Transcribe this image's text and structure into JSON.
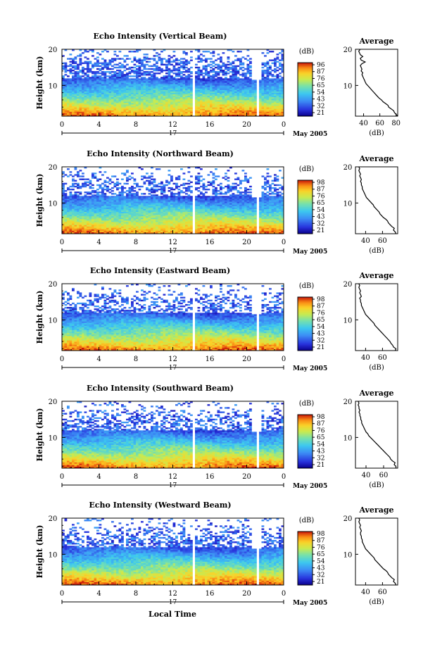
{
  "figure": {
    "shared_x_label": "Local Time",
    "date_label": "17",
    "month_label": "May 2005"
  },
  "chart_data": [
    {
      "type": "heatmap",
      "title": "Echo Intensity (Vertical Beam)",
      "ylabel": "Height (km)",
      "x_ticks": [
        "0",
        "4",
        "8",
        "12",
        "16",
        "20",
        "0"
      ],
      "y_ticks": [
        "10",
        "20"
      ],
      "xlim": [
        0,
        24
      ],
      "ylim": [
        1.5,
        20
      ],
      "colorbar": {
        "unit": "(dB)",
        "ticks": [
          "96",
          "87",
          "76",
          "65",
          "54",
          "43",
          "32",
          "21"
        ]
      },
      "data_gaps_hours": [
        [
          14.1,
          14.3
        ],
        [
          21.0,
          21.2
        ]
      ],
      "profile": {
        "title": "Average",
        "xlabel": "(dB)",
        "x_ticks": [
          "40",
          "60",
          "80"
        ],
        "y_ticks": [
          "10",
          "20"
        ],
        "xlim": [
          30,
          82
        ],
        "ylim": [
          1.5,
          20
        ],
        "heights_km": [
          1.5,
          2,
          2.5,
          3,
          3.5,
          4,
          4.5,
          5,
          5.5,
          6,
          6.5,
          7,
          7.5,
          8,
          8.5,
          9,
          9.5,
          10,
          10.5,
          11,
          11.5,
          12,
          12.5,
          13,
          13.5,
          14,
          14.5,
          15,
          15.5,
          16,
          16.5,
          17,
          17.5,
          18,
          18.5,
          19,
          19.5,
          20
        ],
        "values_db": [
          82,
          80,
          78,
          77,
          74,
          71,
          70,
          67,
          64,
          62,
          59,
          57,
          55,
          53,
          51,
          49,
          47,
          45,
          43,
          42,
          41,
          40,
          39,
          38,
          39,
          37,
          38,
          37,
          36,
          38,
          42,
          37,
          36,
          39,
          36,
          35,
          34,
          36
        ]
      }
    },
    {
      "type": "heatmap",
      "title": "Echo Intensity (Northward Beam)",
      "ylabel": "Height (km)",
      "x_ticks": [
        "0",
        "4",
        "8",
        "12",
        "16",
        "20",
        "0"
      ],
      "y_ticks": [
        "10",
        "20"
      ],
      "xlim": [
        0,
        24
      ],
      "ylim": [
        1.5,
        20
      ],
      "colorbar": {
        "unit": "(dB)",
        "ticks": [
          "98",
          "87",
          "76",
          "65",
          "54",
          "43",
          "32",
          "21"
        ]
      },
      "data_gaps_hours": [
        [
          14.1,
          14.3
        ],
        [
          21.0,
          21.2
        ]
      ],
      "profile": {
        "title": "Average",
        "xlabel": "(dB)",
        "x_ticks": [
          "40",
          "60"
        ],
        "y_ticks": [
          "10",
          "20"
        ],
        "xlim": [
          28,
          78
        ],
        "ylim": [
          1.5,
          20
        ],
        "heights_km": [
          1.5,
          2,
          2.5,
          3,
          3.5,
          4,
          4.5,
          5,
          5.5,
          6,
          6.5,
          7,
          7.5,
          8,
          8.5,
          9,
          9.5,
          10,
          10.5,
          11,
          11.5,
          12,
          12.5,
          13,
          13.5,
          14,
          14.5,
          15,
          15.5,
          16,
          16.5,
          17,
          17.5,
          18,
          18.5,
          19,
          19.5,
          20
        ],
        "values_db": [
          76,
          75,
          73,
          74,
          71,
          69,
          67,
          66,
          64,
          61,
          59,
          57,
          56,
          54,
          52,
          50,
          49,
          47,
          45,
          43,
          41,
          40,
          39,
          38,
          37,
          36,
          36,
          35,
          35,
          34,
          35,
          34,
          33,
          34,
          33,
          32,
          33,
          32
        ]
      }
    },
    {
      "type": "heatmap",
      "title": "Echo Intensity (Eastward Beam)",
      "ylabel": "Height (km)",
      "x_ticks": [
        "0",
        "4",
        "8",
        "12",
        "16",
        "20",
        "0"
      ],
      "y_ticks": [
        "10",
        "20"
      ],
      "xlim": [
        0,
        24
      ],
      "ylim": [
        1.5,
        20
      ],
      "colorbar": {
        "unit": "(dB)",
        "ticks": [
          "98",
          "87",
          "76",
          "65",
          "54",
          "43",
          "32",
          "21"
        ]
      },
      "data_gaps_hours": [
        [
          14.1,
          14.3
        ],
        [
          21.0,
          21.2
        ]
      ],
      "profile": {
        "title": "Average",
        "xlabel": "(dB)",
        "x_ticks": [
          "40",
          "60"
        ],
        "y_ticks": [
          "10",
          "20"
        ],
        "xlim": [
          28,
          78
        ],
        "ylim": [
          1.5,
          20
        ],
        "heights_km": [
          1.5,
          2,
          2.5,
          3,
          3.5,
          4,
          4.5,
          5,
          5.5,
          6,
          6.5,
          7,
          7.5,
          8,
          8.5,
          9,
          9.5,
          10,
          10.5,
          11,
          11.5,
          12,
          12.5,
          13,
          13.5,
          14,
          14.5,
          15,
          15.5,
          16,
          16.5,
          17,
          17.5,
          18,
          18.5,
          19,
          19.5,
          20
        ],
        "values_db": [
          75,
          76,
          73,
          72,
          70,
          69,
          67,
          65,
          63,
          61,
          59,
          57,
          55,
          53,
          51,
          50,
          48,
          46,
          44,
          42,
          40,
          39,
          38,
          37,
          36,
          35,
          35,
          34,
          34,
          33,
          35,
          34,
          33,
          34,
          33,
          32,
          33,
          32
        ]
      }
    },
    {
      "type": "heatmap",
      "title": "Echo Intensity (Southward Beam)",
      "ylabel": "Height (km)",
      "x_ticks": [
        "0",
        "4",
        "8",
        "12",
        "16",
        "20",
        "0"
      ],
      "y_ticks": [
        "10",
        "20"
      ],
      "xlim": [
        0,
        24
      ],
      "ylim": [
        1.5,
        20
      ],
      "colorbar": {
        "unit": "(dB)",
        "ticks": [
          "98",
          "87",
          "76",
          "65",
          "54",
          "43",
          "32",
          "21"
        ]
      },
      "data_gaps_hours": [
        [
          14.1,
          14.3
        ],
        [
          21.0,
          21.2
        ]
      ],
      "profile": {
        "title": "Average",
        "xlabel": "(dB)",
        "x_ticks": [
          "40",
          "60"
        ],
        "y_ticks": [
          "10",
          "20"
        ],
        "xlim": [
          28,
          76
        ],
        "ylim": [
          1.5,
          20
        ],
        "heights_km": [
          1.5,
          2,
          2.5,
          3,
          3.5,
          4,
          4.5,
          5,
          5.5,
          6,
          6.5,
          7,
          7.5,
          8,
          8.5,
          9,
          9.5,
          10,
          10.5,
          11,
          11.5,
          12,
          12.5,
          13,
          13.5,
          14,
          14.5,
          15,
          15.5,
          16,
          16.5,
          17,
          17.5,
          18,
          18.5,
          19,
          19.5,
          20
        ],
        "values_db": [
          74,
          74,
          72,
          73,
          70,
          68,
          67,
          65,
          63,
          61,
          59,
          57,
          55,
          53,
          51,
          49,
          47,
          45,
          43,
          42,
          40,
          39,
          38,
          37,
          36,
          35,
          35,
          34,
          34,
          33,
          33,
          32,
          33,
          32,
          32,
          31,
          32,
          31
        ]
      }
    },
    {
      "type": "heatmap",
      "title": "Echo Intensity (Westward Beam)",
      "ylabel": "Height (km)",
      "x_ticks": [
        "0",
        "4",
        "8",
        "12",
        "16",
        "20",
        "0"
      ],
      "y_ticks": [
        "10",
        "20"
      ],
      "xlim": [
        0,
        24
      ],
      "ylim": [
        1.5,
        20
      ],
      "colorbar": {
        "unit": "(dB)",
        "ticks": [
          "98",
          "87",
          "76",
          "65",
          "54",
          "43",
          "32",
          "21"
        ]
      },
      "data_gaps_hours": [
        [
          14.1,
          14.3
        ],
        [
          21.0,
          21.2
        ]
      ],
      "profile": {
        "title": "Average",
        "xlabel": "(dB)",
        "x_ticks": [
          "40",
          "60"
        ],
        "y_ticks": [
          "10",
          "20"
        ],
        "xlim": [
          28,
          78
        ],
        "ylim": [
          1.5,
          20
        ],
        "heights_km": [
          1.5,
          2,
          2.5,
          3,
          3.5,
          4,
          4.5,
          5,
          5.5,
          6,
          6.5,
          7,
          7.5,
          8,
          8.5,
          9,
          9.5,
          10,
          10.5,
          11,
          11.5,
          12,
          12.5,
          13,
          13.5,
          14,
          14.5,
          15,
          15.5,
          16,
          16.5,
          17,
          17.5,
          18,
          18.5,
          19,
          19.5,
          20
        ],
        "values_db": [
          76,
          75,
          73,
          74,
          71,
          69,
          67,
          66,
          64,
          61,
          59,
          57,
          55,
          53,
          51,
          50,
          48,
          46,
          44,
          42,
          40,
          39,
          38,
          37,
          36,
          36,
          35,
          35,
          34,
          34,
          35,
          34,
          33,
          34,
          33,
          32,
          33,
          32
        ]
      }
    }
  ]
}
